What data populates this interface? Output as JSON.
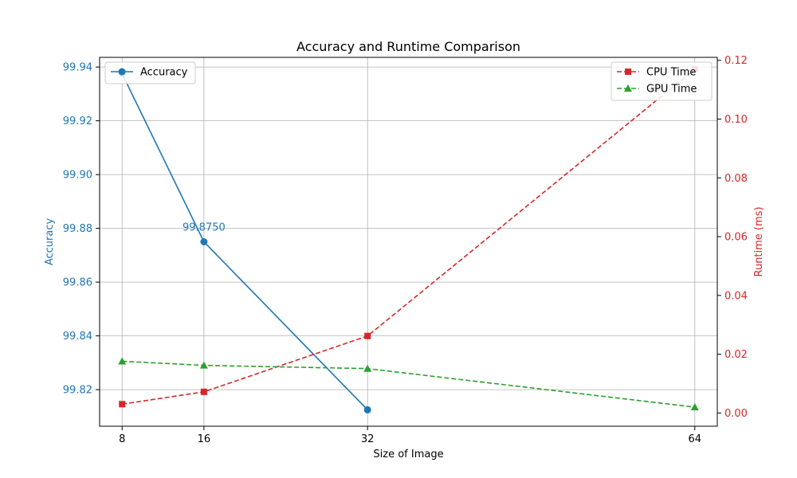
{
  "chart_data": {
    "type": "line",
    "title": "Accuracy and Runtime Comparison",
    "xlabel": "Size of Image",
    "x": [
      8,
      16,
      32,
      64
    ],
    "x_tick_labels": [
      "8",
      "16",
      "32",
      "64"
    ],
    "xlim": [
      5.8,
      66.2
    ],
    "grid": true,
    "left_axis": {
      "label": "Accuracy",
      "color": "#1f77b4",
      "ylim": [
        99.8064,
        99.9436
      ],
      "ticks": [
        99.82,
        99.84,
        99.86,
        99.88,
        99.9,
        99.92,
        99.94
      ],
      "tick_labels": [
        "99.82",
        "99.84",
        "99.86",
        "99.88",
        "99.90",
        "99.92",
        "99.94"
      ]
    },
    "right_axis": {
      "label": "Runtime (ms)",
      "color": "#d62728",
      "ylim": [
        -0.0045,
        0.121
      ],
      "ticks": [
        0.0,
        0.02,
        0.04,
        0.06,
        0.08,
        0.1,
        0.12
      ],
      "tick_labels": [
        "0.00",
        "0.02",
        "0.04",
        "0.06",
        "0.08",
        "0.10",
        "0.12"
      ]
    },
    "series": [
      {
        "name": "Accuracy",
        "axis": "left",
        "color": "#1f77b4",
        "style": "solid",
        "marker": "circle",
        "x": [
          8,
          16,
          32
        ],
        "values": [
          99.9375,
          99.875,
          99.8125
        ]
      },
      {
        "name": "CPU Time",
        "axis": "right",
        "color": "#d62728",
        "style": "dashed",
        "marker": "square",
        "x": [
          8,
          16,
          32,
          64
        ],
        "values": [
          0.003,
          0.0072,
          0.0262,
          0.117
        ]
      },
      {
        "name": "GPU Time",
        "axis": "right",
        "color": "#2ca02c",
        "style": "dashed",
        "marker": "triangle",
        "x": [
          8,
          16,
          32,
          64
        ],
        "values": [
          0.0176,
          0.0162,
          0.0151,
          0.002
        ]
      }
    ],
    "annotations": [
      {
        "text": "99.8750",
        "x": 16,
        "y": 99.875,
        "axis": "left"
      }
    ],
    "legends": [
      {
        "placement": "upper-left",
        "entries": [
          "Accuracy"
        ]
      },
      {
        "placement": "upper-right",
        "entries": [
          "CPU Time",
          "GPU Time"
        ]
      }
    ]
  }
}
